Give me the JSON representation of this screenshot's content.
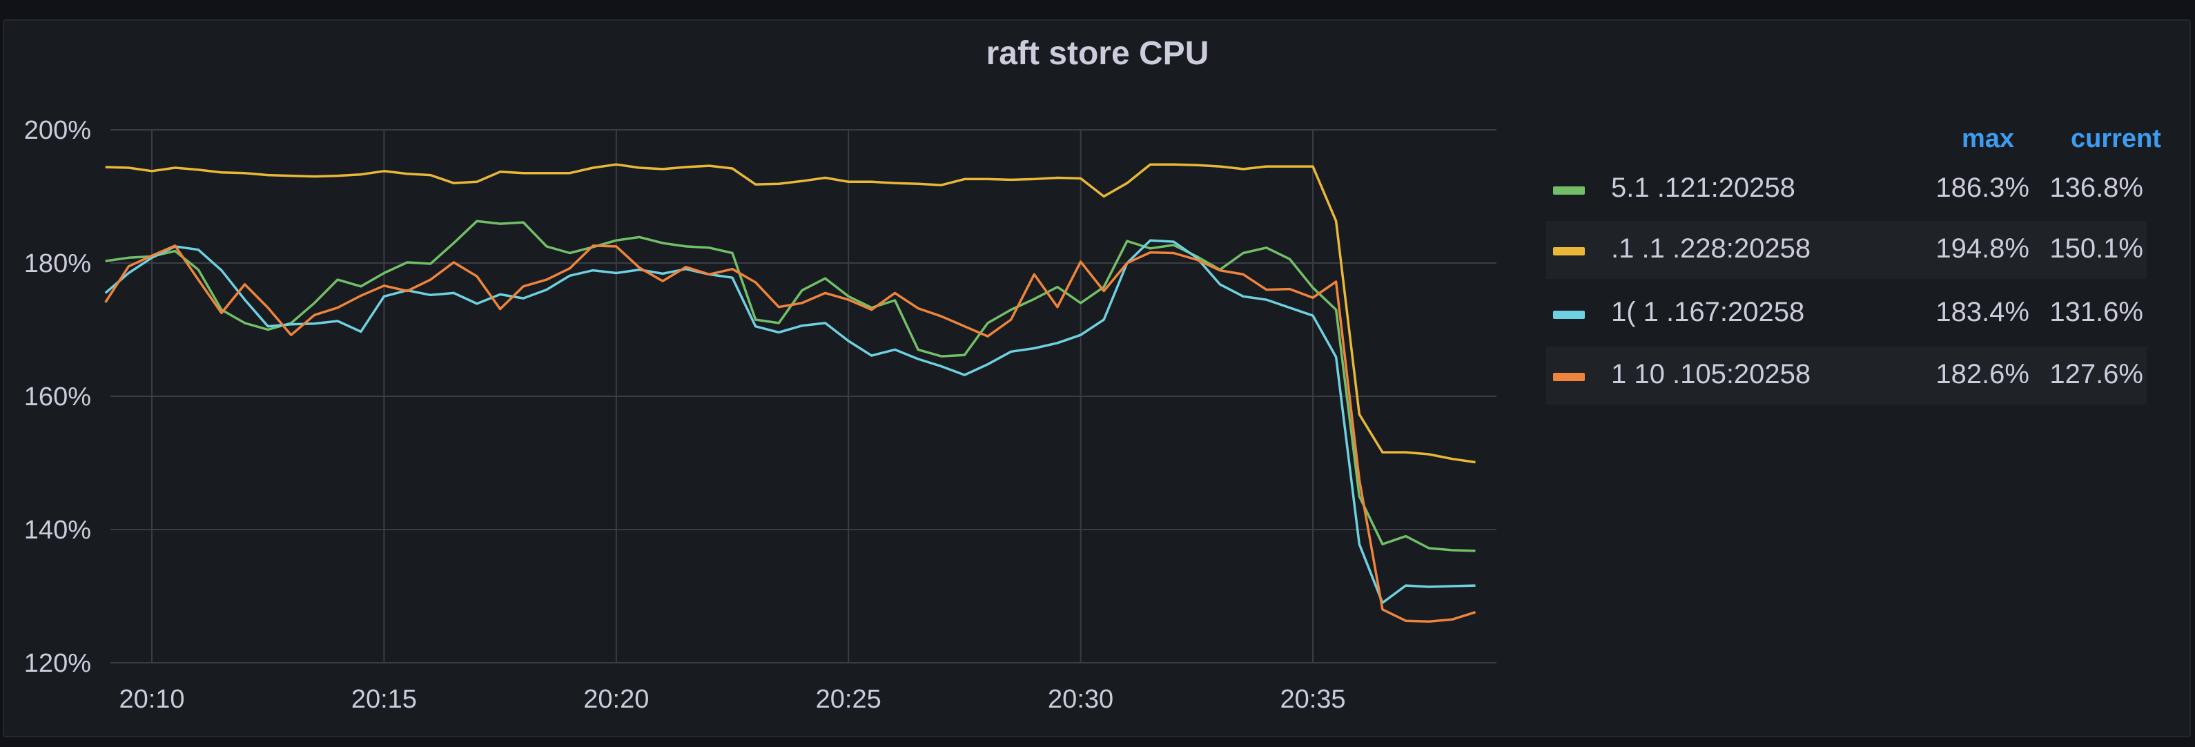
{
  "panel": {
    "title": "raft store CPU"
  },
  "legend": {
    "max_label": "max",
    "current_label": "current",
    "entries": [
      {
        "name": "5.1 .121:20258",
        "color": "#73bf69",
        "max": "186.3%",
        "current": "136.8%"
      },
      {
        "name": ".1 .1 .228:20258",
        "color": "#fade2a",
        "max": "194.8%",
        "current": "150.1%"
      },
      {
        "name": "1( 1 .167:20258",
        "color": "#5794f2",
        "max": "183.4%",
        "current": "131.6%"
      },
      {
        "name": "1 10 .105:20258",
        "color": "#ff780a",
        "max": "182.6%",
        "current": "127.6%"
      }
    ]
  },
  "colors": {
    "green": "#73bf69",
    "yellow": "#eab839",
    "cyan": "#6ed0e0",
    "orange": "#ef843c",
    "grid": "#3a3d44",
    "text": "#ccccdc",
    "legend_header": "#3d9df2"
  },
  "chart_data": {
    "type": "line",
    "title": "raft store CPU",
    "xlabel": "",
    "ylabel": "",
    "x_ticks": [
      "20:10",
      "20:15",
      "20:20",
      "20:25",
      "20:30",
      "20:35"
    ],
    "y_ticks": [
      "200%",
      "180%",
      "160%",
      "140%",
      "120%"
    ],
    "ylim": [
      120,
      200
    ],
    "xlim": [
      "20:09",
      "20:39"
    ],
    "grid": true,
    "legend_position": "right",
    "x": [
      "20:09:00",
      "20:09:30",
      "20:10:00",
      "20:10:30",
      "20:11:00",
      "20:11:30",
      "20:12:00",
      "20:12:30",
      "20:13:00",
      "20:13:30",
      "20:14:00",
      "20:14:30",
      "20:15:00",
      "20:15:30",
      "20:16:00",
      "20:16:30",
      "20:17:00",
      "20:17:30",
      "20:18:00",
      "20:18:30",
      "20:19:00",
      "20:19:30",
      "20:20:00",
      "20:20:30",
      "20:21:00",
      "20:21:30",
      "20:22:00",
      "20:22:30",
      "20:23:00",
      "20:23:30",
      "20:24:00",
      "20:24:30",
      "20:25:00",
      "20:25:30",
      "20:26:00",
      "20:26:30",
      "20:27:00",
      "20:27:30",
      "20:28:00",
      "20:28:30",
      "20:29:00",
      "20:29:30",
      "20:30:00",
      "20:30:30",
      "20:31:00",
      "20:31:30",
      "20:32:00",
      "20:32:30",
      "20:33:00",
      "20:33:30",
      "20:34:00",
      "20:34:30",
      "20:35:00",
      "20:35:30",
      "20:36:00",
      "20:36:30",
      "20:37:00",
      "20:37:30",
      "20:38:00",
      "20:38:30"
    ],
    "series": [
      {
        "name": "5.1 .121:20258",
        "values": [
          180.3,
          180.8,
          181.0,
          181.8,
          179.0,
          173.0,
          171.0,
          170.0,
          171.0,
          174.0,
          177.5,
          176.5,
          178.5,
          180.1,
          179.9,
          183.0,
          186.3,
          185.9,
          186.1,
          182.5,
          181.5,
          182.4,
          183.4,
          183.9,
          183.0,
          182.5,
          182.3,
          181.5,
          171.5,
          171.0,
          175.9,
          177.7,
          175.0,
          173.3,
          174.4,
          167.0,
          166.0,
          166.2,
          171.0,
          173.0,
          174.6,
          176.4,
          174.0,
          176.4,
          183.3,
          182.2,
          182.7,
          181.0,
          179.0,
          181.5,
          182.3,
          180.6,
          176.3,
          173.0,
          145.0,
          137.8,
          139.0,
          137.2,
          136.9,
          136.8
        ]
      },
      {
        "name": ".1 .1 .228:20258",
        "values": [
          194.4,
          194.3,
          193.8,
          194.3,
          194.0,
          193.6,
          193.5,
          193.2,
          193.1,
          193.0,
          193.1,
          193.3,
          193.8,
          193.4,
          193.2,
          192.0,
          192.2,
          193.7,
          193.5,
          193.5,
          193.5,
          194.3,
          194.8,
          194.3,
          194.1,
          194.4,
          194.6,
          194.2,
          191.8,
          191.9,
          192.3,
          192.8,
          192.2,
          192.2,
          192.0,
          191.9,
          191.7,
          192.6,
          192.6,
          192.5,
          192.6,
          192.8,
          192.7,
          190.0,
          192.0,
          194.8,
          194.8,
          194.7,
          194.5,
          194.1,
          194.5,
          194.5,
          194.5,
          186.3,
          157.3,
          151.6,
          151.6,
          151.3,
          150.6,
          150.1
        ]
      },
      {
        "name": "1( 1 .167:20258",
        "values": [
          175.5,
          178.5,
          180.8,
          182.5,
          182.0,
          178.9,
          174.5,
          170.5,
          170.8,
          170.9,
          171.3,
          169.7,
          175.0,
          175.9,
          175.2,
          175.5,
          173.9,
          175.3,
          174.7,
          176.0,
          178.1,
          178.9,
          178.5,
          179.0,
          178.4,
          179.1,
          178.3,
          177.8,
          170.5,
          169.6,
          170.6,
          171.0,
          168.3,
          166.1,
          167.0,
          165.6,
          164.5,
          163.2,
          164.8,
          166.7,
          167.2,
          168.0,
          169.2,
          171.5,
          180.0,
          183.4,
          183.2,
          180.8,
          176.8,
          175.0,
          174.5,
          173.3,
          172.1,
          165.9,
          137.8,
          129.0,
          131.6,
          131.4,
          131.5,
          131.6
        ]
      },
      {
        "name": "1 10 .105:20258",
        "values": [
          174.1,
          179.5,
          181.1,
          182.6,
          177.5,
          172.5,
          176.8,
          173.3,
          169.2,
          172.2,
          173.3,
          175.1,
          176.6,
          175.8,
          177.5,
          180.1,
          178.0,
          173.1,
          176.5,
          177.5,
          179.2,
          182.6,
          182.5,
          179.3,
          177.3,
          179.4,
          178.3,
          179.1,
          177.1,
          173.4,
          174.0,
          175.5,
          174.5,
          173.0,
          175.5,
          173.2,
          172.0,
          170.5,
          169.0,
          171.5,
          178.3,
          173.4,
          180.2,
          175.8,
          180.0,
          181.6,
          181.5,
          180.5,
          178.9,
          178.3,
          176.0,
          176.1,
          174.8,
          177.2,
          147.5,
          128.0,
          126.3,
          126.2,
          126.5,
          127.6
        ]
      }
    ]
  }
}
